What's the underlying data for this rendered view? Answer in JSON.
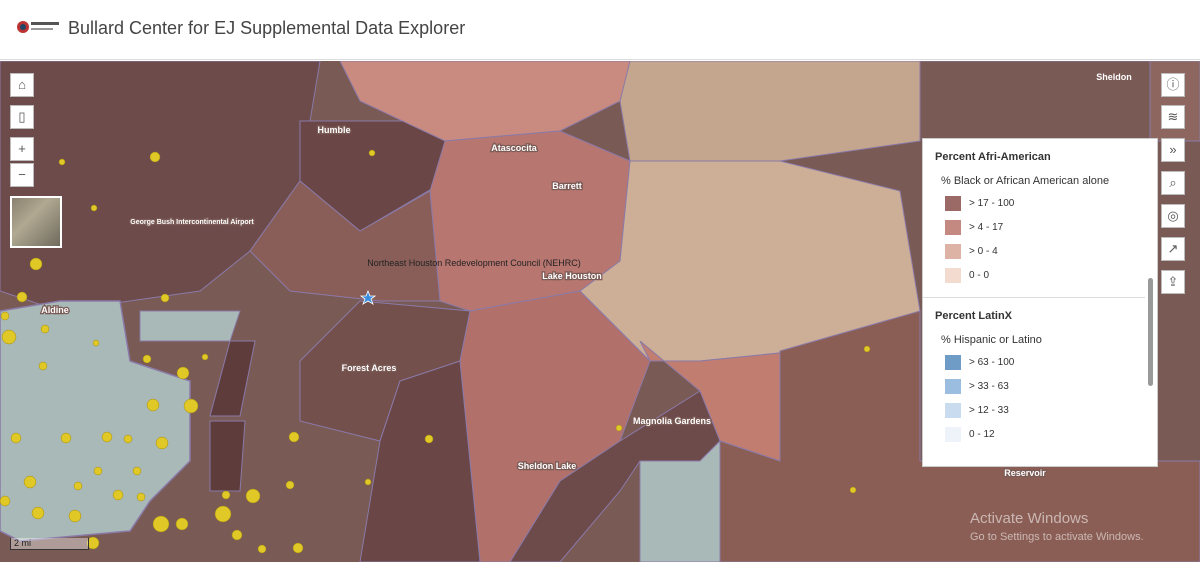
{
  "header": {
    "title": "Bullard Center for EJ Supplemental Data Explorer"
  },
  "map_labels": [
    "Humble",
    "Atascocita",
    "Barrett",
    "George Bush Intercontinental Airport",
    "Northeast Houston Redevelopment Council (NEHRC)",
    "Lake Houston",
    "Aldine",
    "Forest Acres",
    "Magnolia Gardens",
    "Sheldon Lake",
    "Sheldon",
    "Reservoir"
  ],
  "scale": "2 mi",
  "legend": {
    "layers": [
      {
        "title": "Percent Afri-American",
        "field": "% Black or African American alone",
        "items": [
          {
            "label": "> 17 - 100",
            "color": "#9c6a66"
          },
          {
            "label": "> 4 - 17",
            "color": "#c48a82"
          },
          {
            "label": "> 0 - 4",
            "color": "#ddb3a6"
          },
          {
            "label": "0 - 0",
            "color": "#f3dccf"
          }
        ]
      },
      {
        "title": "Percent LatinX",
        "field": "% Hispanic or Latino",
        "items": [
          {
            "label": "> 63 - 100",
            "color": "#6f9cc7"
          },
          {
            "label": "> 33 - 63",
            "color": "#9bbde0"
          },
          {
            "label": "> 12 - 33",
            "color": "#c9dbee"
          },
          {
            "label": "0 - 12",
            "color": "#eef3fa"
          }
        ]
      }
    ]
  },
  "watermark": {
    "title": "Activate Windows",
    "subtitle": "Go to Settings to activate Windows."
  }
}
